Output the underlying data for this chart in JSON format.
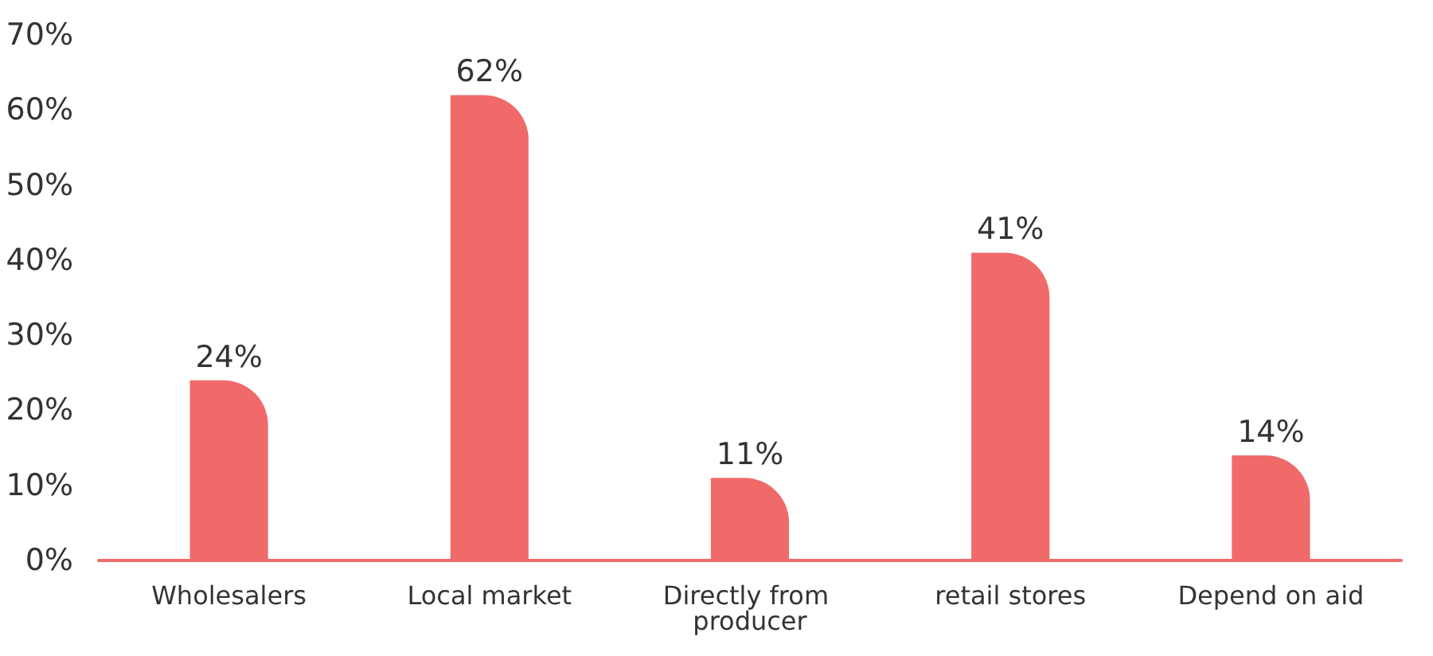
{
  "chart_data": {
    "type": "bar",
    "categories": [
      "Wholesalers",
      "Local market",
      "Directly from producer",
      "retail stores",
      "Depend on aid"
    ],
    "values": [
      24,
      62,
      11,
      41,
      14
    ],
    "value_labels": [
      "24%",
      "62%",
      "11%",
      "41%",
      "14%"
    ],
    "color": "#f06a6a",
    "ylim": [
      0,
      70
    ],
    "yticks": [
      {
        "value": 0,
        "label": "0%"
      },
      {
        "value": 10,
        "label": "10%"
      },
      {
        "value": 20,
        "label": "20%"
      },
      {
        "value": 30,
        "label": "30%"
      },
      {
        "value": 40,
        "label": "40%"
      },
      {
        "value": 50,
        "label": "50%"
      },
      {
        "value": 60,
        "label": "60%"
      },
      {
        "value": 70,
        "label": "70%"
      }
    ],
    "grid": false
  }
}
